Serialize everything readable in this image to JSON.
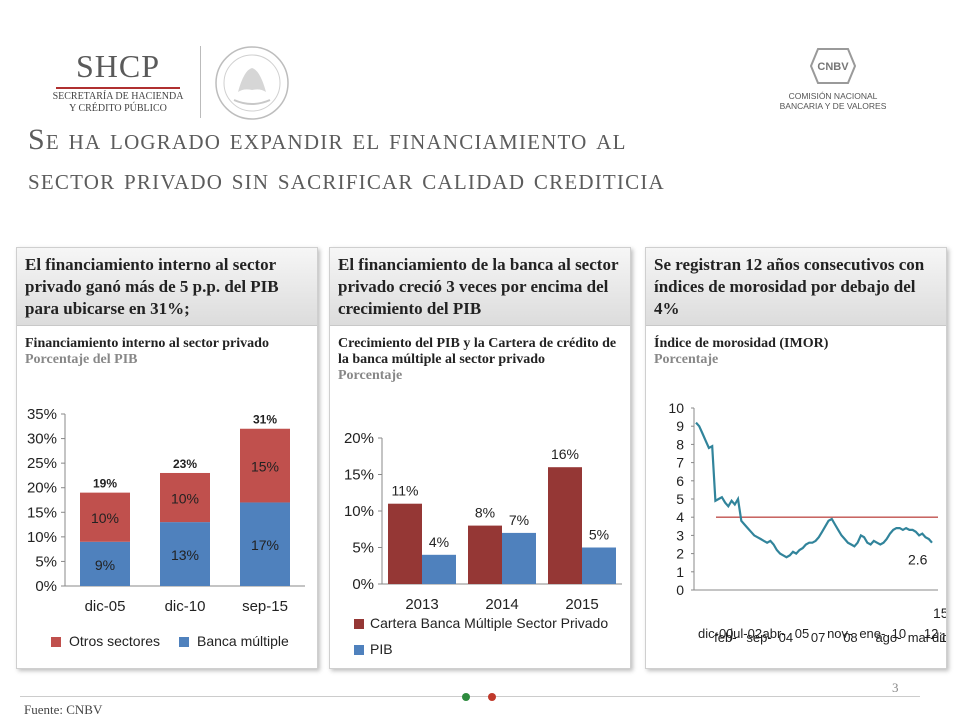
{
  "header": {
    "shcp_name": "SHCP",
    "shcp_sub1": "SECRETARÍA DE HACIENDA",
    "shcp_sub2": "Y CRÉDITO PÚBLICO",
    "cnbv_badge": "CNBV",
    "cnbv_sub1": "COMISIÓN NACIONAL",
    "cnbv_sub2": "BANCARIA Y DE VALORES"
  },
  "title_line1": "Se ha logrado expandir el financiamiento al",
  "title_line2": "sector privado sin sacrificar calidad crediticia",
  "panels": [
    {
      "heading": "El financiamiento interno al sector privado ganó más de 5 p.p. del PIB para ubicarse en 31%;",
      "subtitle": "Financiamiento interno al sector privado",
      "unit": "Porcentaje del PIB"
    },
    {
      "heading": "El financiamiento de la banca al sector privado creció 3 veces por encima del crecimiento del PIB",
      "subtitle": "Crecimiento del PIB y la Cartera de crédito de la banca múltiple al sector privado",
      "unit": "Porcentaje"
    },
    {
      "heading": "Se registran 12 años consecutivos con índices de morosidad por debajo del 4%",
      "subtitle": "Índice de morosidad (IMOR)",
      "unit": "Porcentaje"
    }
  ],
  "chart_data": [
    {
      "type": "bar",
      "stacked": true,
      "categories": [
        "dic-05",
        "dic-10",
        "sep-15"
      ],
      "series": [
        {
          "name": "Banca múltiple",
          "values": [
            9,
            13,
            17
          ],
          "labels": [
            "9%",
            "13%",
            "17%"
          ],
          "color": "#4f81bd"
        },
        {
          "name": "Otros sectores",
          "values": [
            10,
            10,
            15
          ],
          "labels": [
            "10%",
            "10%",
            "15%"
          ],
          "color": "#c0504d"
        }
      ],
      "totals": [
        19,
        23,
        31
      ],
      "total_labels": [
        "19%",
        "23%",
        "31%"
      ],
      "ylim": [
        0,
        35
      ],
      "yticks": [
        "0%",
        "5%",
        "10%",
        "15%",
        "20%",
        "25%",
        "30%",
        "35%"
      ],
      "grid": false,
      "legend": "bottom"
    },
    {
      "type": "bar",
      "categories": [
        "2013",
        "2014",
        "2015"
      ],
      "series": [
        {
          "name": "Cartera Banca Múltiple Sector Privado",
          "values": [
            11,
            8,
            16
          ],
          "labels": [
            "11%",
            "8%",
            "16%"
          ],
          "color": "#953735"
        },
        {
          "name": "PIB",
          "values": [
            4,
            7,
            5
          ],
          "labels": [
            "4%",
            "7%",
            "5%"
          ],
          "color": "#4f81bd"
        }
      ],
      "ylim": [
        0,
        20
      ],
      "yticks": [
        "0%",
        "5%",
        "10%",
        "15%",
        "20%"
      ],
      "grid": false,
      "legend": "bottom"
    },
    {
      "type": "line",
      "series": [
        {
          "name": "IMOR",
          "color": "#31849b",
          "values": [
            9.2,
            9.0,
            8.6,
            8.2,
            7.8,
            7.9,
            4.9,
            5.0,
            5.1,
            4.8,
            4.6,
            4.9,
            4.7,
            5.0,
            3.8,
            3.6,
            3.4,
            3.2,
            3.0,
            2.9,
            2.8,
            2.7,
            2.6,
            2.7,
            2.5,
            2.2,
            2.0,
            1.9,
            1.8,
            1.9,
            2.1,
            2.0,
            2.2,
            2.3,
            2.5,
            2.6,
            2.6,
            2.7,
            2.9,
            3.2,
            3.5,
            3.8,
            3.9,
            3.6,
            3.3,
            3.0,
            2.8,
            2.6,
            2.5,
            2.4,
            2.6,
            3.0,
            2.9,
            2.6,
            2.5,
            2.7,
            2.6,
            2.5,
            2.6,
            2.8,
            3.1,
            3.3,
            3.4,
            3.4,
            3.3,
            3.4,
            3.3,
            3.3,
            3.2,
            3.0,
            3.1,
            2.9,
            2.8,
            2.6
          ]
        },
        {
          "name": "4%",
          "values": [
            4,
            4
          ],
          "color": "#c0504d"
        }
      ],
      "end_label": "2.6",
      "ylim": [
        0,
        10
      ],
      "yticks": [
        "0",
        "1",
        "2",
        "3",
        "4",
        "5",
        "6",
        "7",
        "8",
        "9",
        "10"
      ],
      "xtick_labels": [
        "dic-00",
        "feb-",
        "jul-02",
        "sep-",
        "abr-",
        "04",
        "05",
        "07",
        "nov-",
        "08",
        "ene-",
        "ago-",
        "10",
        "mar-",
        "12",
        "13",
        "15",
        "dic"
      ],
      "grid": false
    }
  ],
  "footer": {
    "source": "Fuente: CNBV",
    "page": "3"
  }
}
